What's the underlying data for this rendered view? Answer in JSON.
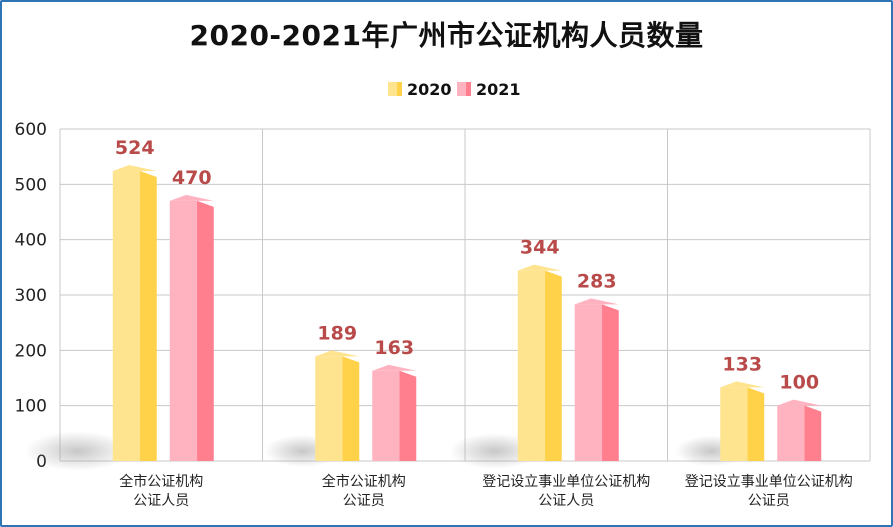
{
  "chart_data": {
    "type": "bar",
    "title": "2020-2021年广州市公证机构人员数量",
    "categories": [
      [
        "全市公证机构",
        "公证人员"
      ],
      [
        "全市公证机构",
        "公证员"
      ],
      [
        "登记设立事业单位公证机构",
        "公证人员"
      ],
      [
        "登记设立事业单位公证机构",
        "公证员"
      ]
    ],
    "series": [
      {
        "name": "2020",
        "values": [
          524,
          189,
          344,
          133
        ],
        "color": "#ffd24a",
        "color_light": "#ffe48f"
      },
      {
        "name": "2021",
        "values": [
          470,
          163,
          283,
          100
        ],
        "color": "#ff7f8f",
        "color_light": "#ffb3c0"
      }
    ],
    "ylim": [
      0,
      600
    ],
    "yticks": [
      0,
      100,
      200,
      300,
      400,
      500,
      600
    ],
    "label_color": "#b94a4a",
    "grid": true,
    "legend": "top-center"
  }
}
